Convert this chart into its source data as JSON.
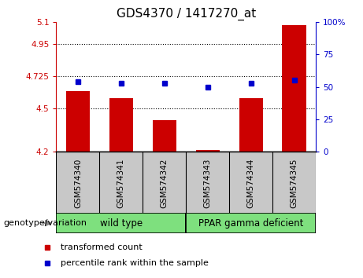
{
  "title": "GDS4370 / 1417270_at",
  "samples": [
    "GSM574340",
    "GSM574341",
    "GSM574342",
    "GSM574343",
    "GSM574344",
    "GSM574345"
  ],
  "transformed_count": [
    4.62,
    4.57,
    4.42,
    4.21,
    4.57,
    5.08
  ],
  "percentile_rank": [
    54,
    53,
    53,
    50,
    53,
    55
  ],
  "bar_bottom": 4.2,
  "ylim_left": [
    4.2,
    5.1
  ],
  "ylim_right": [
    0,
    100
  ],
  "yticks_left": [
    4.2,
    4.5,
    4.725,
    4.95,
    5.1
  ],
  "ytick_labels_left": [
    "4.2",
    "4.5",
    "4.725",
    "4.95",
    "5.1"
  ],
  "yticks_right": [
    0,
    25,
    50,
    75,
    100
  ],
  "ytick_labels_right": [
    "0",
    "25",
    "50",
    "75",
    "100%"
  ],
  "hlines": [
    4.5,
    4.725,
    4.95
  ],
  "bar_color": "#cc0000",
  "dot_color": "#0000cc",
  "bar_width": 0.55,
  "group_wt_label": "wild type",
  "group_ppar_label": "PPAR gamma deficient",
  "group_box_color": "#7EE07E",
  "xlabel_group": "genotype/variation",
  "legend_items": [
    {
      "label": "transformed count",
      "color": "#cc0000"
    },
    {
      "label": "percentile rank within the sample",
      "color": "#0000cc"
    }
  ],
  "tick_bg_color": "#c8c8c8",
  "plot_bg_color": "#ffffff",
  "fig_bg_color": "#ffffff",
  "title_fontsize": 11,
  "tick_fontsize": 7.5,
  "label_fontsize": 8.5,
  "legend_fontsize": 8
}
